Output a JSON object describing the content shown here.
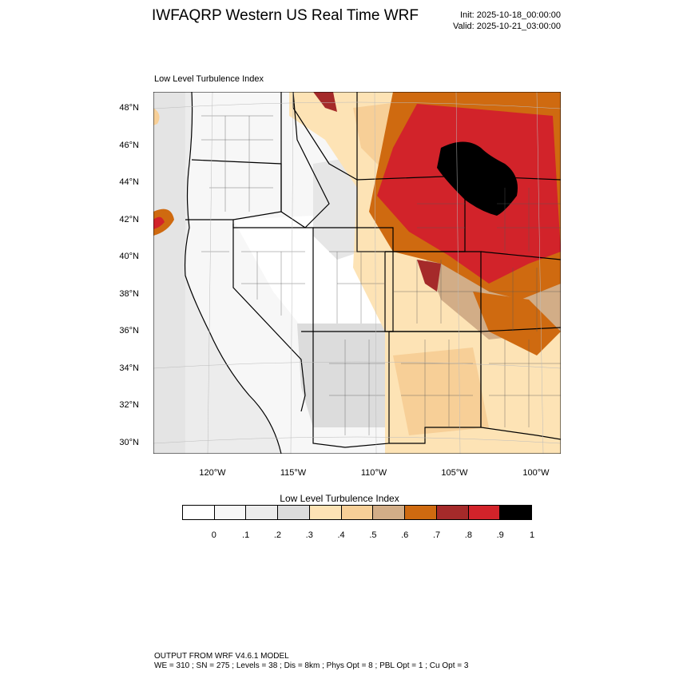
{
  "title": "IWFAQRP Western US Real Time WRF",
  "init_label": "Init: 2025-10-18_00:00:00",
  "valid_label": "Valid: 2025-10-21_03:00:00",
  "map": {
    "field_label": "Low Level Turbulence Index",
    "lat_labels": [
      "48°N",
      "46°N",
      "44°N",
      "42°N",
      "40°N",
      "38°N",
      "36°N",
      "34°N",
      "32°N",
      "30°N"
    ],
    "lon_labels": [
      "120°W",
      "115°W",
      "110°W",
      "105°W",
      "100°W"
    ]
  },
  "colorbar": {
    "title": "Low Level Turbulence Index",
    "colors": [
      "#ffffff",
      "#f7f7f7",
      "#ececec",
      "#dcdcdc",
      "#fde3b5",
      "#f7cf97",
      "#d2ad87",
      "#cf6a10",
      "#a52a2a",
      "#d2232a",
      "#000000"
    ],
    "ticks": [
      "0",
      ".1",
      ".2",
      ".3",
      ".4",
      ".5",
      ".6",
      ".7",
      ".8",
      ".9",
      "1"
    ]
  },
  "footer": {
    "line1": "OUTPUT FROM WRF V4.6.1 MODEL",
    "line2": "WE = 310 ; SN = 275 ; Levels = 38 ; Dis = 8km ; Phys Opt = 8 ; PBL Opt = 1 ; Cu Opt = 3"
  }
}
